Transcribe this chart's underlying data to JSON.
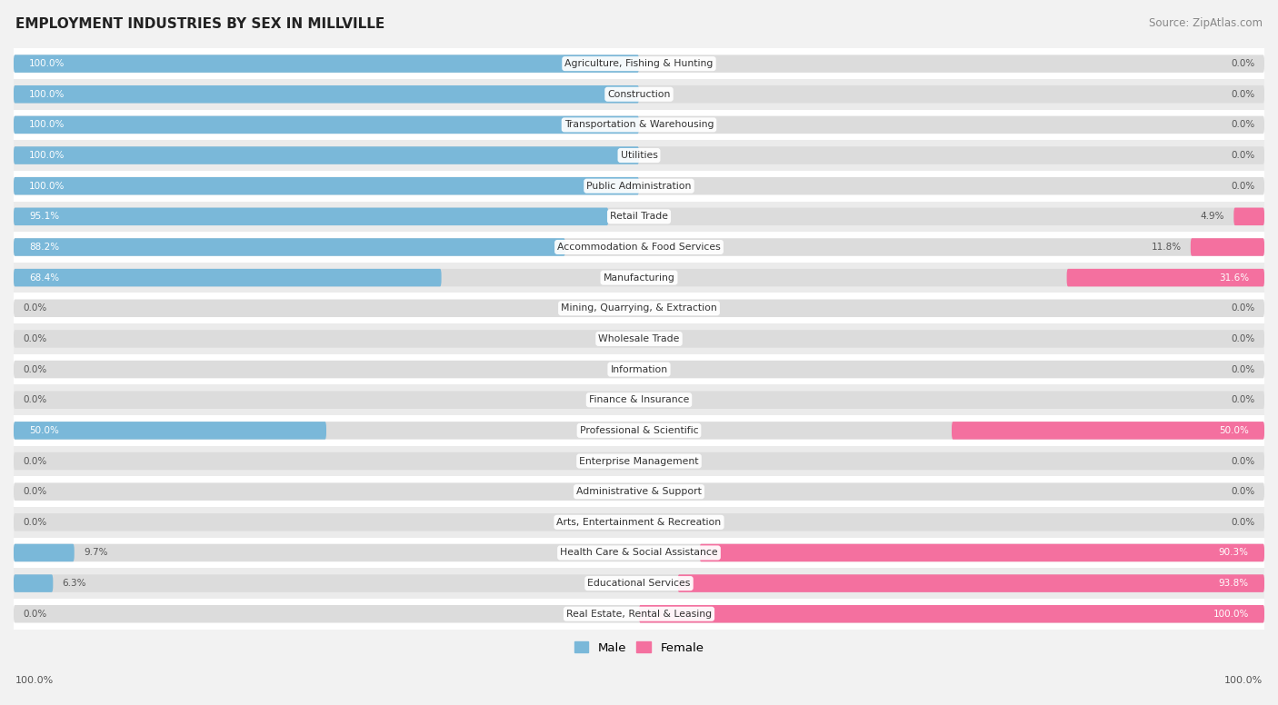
{
  "title": "EMPLOYMENT INDUSTRIES BY SEX IN MILLVILLE",
  "source": "Source: ZipAtlas.com",
  "categories": [
    "Agriculture, Fishing & Hunting",
    "Construction",
    "Transportation & Warehousing",
    "Utilities",
    "Public Administration",
    "Retail Trade",
    "Accommodation & Food Services",
    "Manufacturing",
    "Mining, Quarrying, & Extraction",
    "Wholesale Trade",
    "Information",
    "Finance & Insurance",
    "Professional & Scientific",
    "Enterprise Management",
    "Administrative & Support",
    "Arts, Entertainment & Recreation",
    "Health Care & Social Assistance",
    "Educational Services",
    "Real Estate, Rental & Leasing"
  ],
  "male": [
    100.0,
    100.0,
    100.0,
    100.0,
    100.0,
    95.1,
    88.2,
    68.4,
    0.0,
    0.0,
    0.0,
    0.0,
    50.0,
    0.0,
    0.0,
    0.0,
    9.7,
    6.3,
    0.0
  ],
  "female": [
    0.0,
    0.0,
    0.0,
    0.0,
    0.0,
    4.9,
    11.8,
    31.6,
    0.0,
    0.0,
    0.0,
    0.0,
    50.0,
    0.0,
    0.0,
    0.0,
    90.3,
    93.8,
    100.0
  ],
  "male_color": "#7ab8d9",
  "female_color": "#f4709f",
  "bg_color": "#f2f2f2",
  "row_color_odd": "#ffffff",
  "row_color_even": "#ebebeb",
  "bar_bg_color": "#dcdcdc",
  "title_color": "#222222",
  "source_color": "#888888",
  "value_color_outside": "#555555",
  "value_color_inside": "#ffffff",
  "bar_height": 0.58,
  "label_fontsize": 7.8,
  "value_fontsize": 7.5
}
